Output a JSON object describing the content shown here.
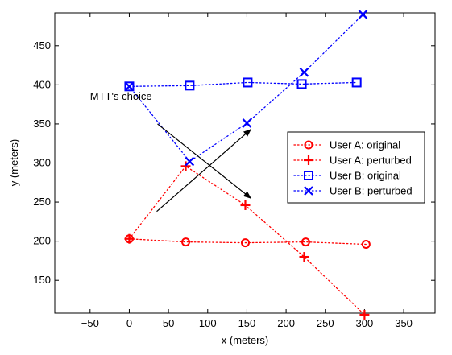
{
  "chart_data": {
    "type": "line",
    "title": "",
    "xlabel": "x (meters)",
    "ylabel": "y (meters)",
    "xlim": [
      -95,
      390
    ],
    "ylim": [
      108,
      492
    ],
    "xticks": [
      -50,
      0,
      50,
      100,
      150,
      200,
      250,
      300,
      350
    ],
    "xtick_labels": [
      "−50",
      "0",
      "50",
      "100",
      "150",
      "200",
      "250",
      "300",
      "350"
    ],
    "yticks": [
      150,
      200,
      250,
      300,
      350,
      400,
      450
    ],
    "ytick_labels": [
      "150",
      "200",
      "250",
      "300",
      "350",
      "400",
      "450"
    ],
    "grid": false,
    "legend_position": "right",
    "series": [
      {
        "name": "User A: original",
        "color": "#ff0000",
        "marker": "circle",
        "line_style": "dotted",
        "x": [
          0,
          72,
          148,
          225,
          302
        ],
        "y": [
          203,
          199,
          198,
          199,
          196
        ]
      },
      {
        "name": "User A: perturbed",
        "color": "#ff0000",
        "marker": "plus",
        "line_style": "dotted",
        "x": [
          0,
          72,
          148,
          223,
          300
        ],
        "y": [
          203,
          296,
          246,
          180,
          106
        ]
      },
      {
        "name": "User B: original",
        "color": "#0000ff",
        "marker": "square",
        "line_style": "dotted",
        "x": [
          0,
          77,
          151,
          220,
          290
        ],
        "y": [
          398,
          399,
          403,
          401,
          403
        ]
      },
      {
        "name": "User B: perturbed",
        "color": "#0000ff",
        "marker": "x",
        "line_style": "dotted",
        "x": [
          0,
          77,
          150,
          223,
          298
        ],
        "y": [
          398,
          302,
          351,
          416,
          490
        ]
      }
    ],
    "annotations": [
      {
        "text": "MTT's choice",
        "x": -50,
        "y": 381
      }
    ],
    "arrows": [
      {
        "from": [
          36,
          350
        ],
        "to": [
          155,
          255
        ]
      },
      {
        "from": [
          35,
          238
        ],
        "to": [
          155,
          343
        ]
      }
    ]
  }
}
